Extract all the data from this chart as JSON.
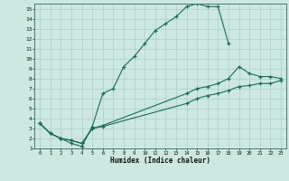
{
  "xlabel": "Humidex (Indice chaleur)",
  "bg_color": "#cce8e0",
  "line_color": "#1a6b5a",
  "grid_color": "#aacfc8",
  "xlim": [
    -0.5,
    23.5
  ],
  "ylim": [
    1,
    15.5
  ],
  "xticks": [
    0,
    1,
    2,
    3,
    4,
    5,
    6,
    7,
    8,
    9,
    10,
    11,
    12,
    13,
    14,
    15,
    16,
    17,
    18,
    19,
    20,
    21,
    22,
    23
  ],
  "yticks": [
    1,
    2,
    3,
    4,
    5,
    6,
    7,
    8,
    9,
    10,
    11,
    12,
    13,
    14,
    15
  ],
  "curve1_x": [
    0,
    1,
    2,
    3,
    4,
    5,
    6,
    7,
    8,
    9,
    10,
    11,
    12,
    13,
    14,
    15,
    16,
    17,
    18
  ],
  "curve1_y": [
    3.5,
    2.5,
    2.0,
    1.5,
    1.2,
    3.2,
    6.5,
    7.0,
    9.2,
    10.2,
    11.5,
    12.8,
    13.5,
    14.2,
    15.2,
    15.5,
    15.2,
    15.2,
    11.5
  ],
  "curve2_x": [
    0,
    1,
    2,
    3,
    4,
    5,
    6,
    14,
    15,
    16,
    17,
    18,
    19,
    20,
    21,
    22,
    23
  ],
  "curve2_y": [
    3.5,
    2.5,
    2.0,
    1.8,
    1.5,
    3.0,
    3.3,
    6.5,
    7.0,
    7.2,
    7.5,
    8.0,
    9.2,
    8.5,
    8.2,
    8.2,
    8.0
  ],
  "curve3_x": [
    0,
    1,
    2,
    3,
    4,
    5,
    6,
    14,
    15,
    16,
    17,
    18,
    19,
    20,
    21,
    22,
    23
  ],
  "curve3_y": [
    3.5,
    2.5,
    2.0,
    1.8,
    1.5,
    3.0,
    3.2,
    5.5,
    6.0,
    6.3,
    6.5,
    6.8,
    7.2,
    7.3,
    7.5,
    7.5,
    7.8
  ]
}
